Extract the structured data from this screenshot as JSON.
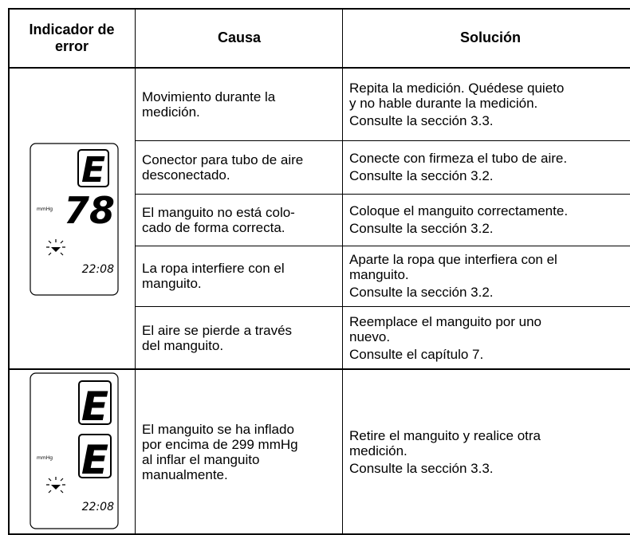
{
  "table": {
    "headers": [
      "Indicador de\nerror",
      "Causa",
      "Solución"
    ],
    "rows": [
      {
        "cause": "Movimiento durante la\nmedición.",
        "solution": [
          "Repita la medición. Quédese quieto\ny no hable durante la medición.",
          "Consulte la sección 3.3."
        ]
      },
      {
        "cause": "Conector para tubo de aire\ndesconectado.",
        "solution": [
          "Conecte con firmeza el tubo de aire.",
          "Consulte la sección 3.2."
        ]
      },
      {
        "cause": "El manguito no está colo-\ncado de forma correcta.",
        "solution": [
          "Coloque el manguito correctamente.",
          "Consulte la sección 3.2."
        ]
      },
      {
        "cause": "La ropa interfiere con el\nmanguito.",
        "solution": [
          "Aparte la ropa que interfiera con el\nmanguito.",
          "Consulte la sección 3.2."
        ]
      },
      {
        "cause": "El aire se pierde a través\ndel manguito.",
        "solution": [
          "Reemplace el manguito por uno\nnuevo.",
          "Consulte el capítulo 7."
        ]
      },
      {
        "cause": "El manguito se ha inflado\npor encima de 299 mmHg\nal inflar el manguito\nmanualmente.",
        "solution": [
          "Retire el manguito y realice otra\nmedición.",
          "Consulte la sección 3.3."
        ]
      }
    ]
  },
  "displays": [
    {
      "top": "E",
      "bottom": "78",
      "unit": "mmHg",
      "time": "22:08"
    },
    {
      "top": "E",
      "bottom": "E",
      "unit": "mmHg",
      "time": "22:08"
    }
  ]
}
